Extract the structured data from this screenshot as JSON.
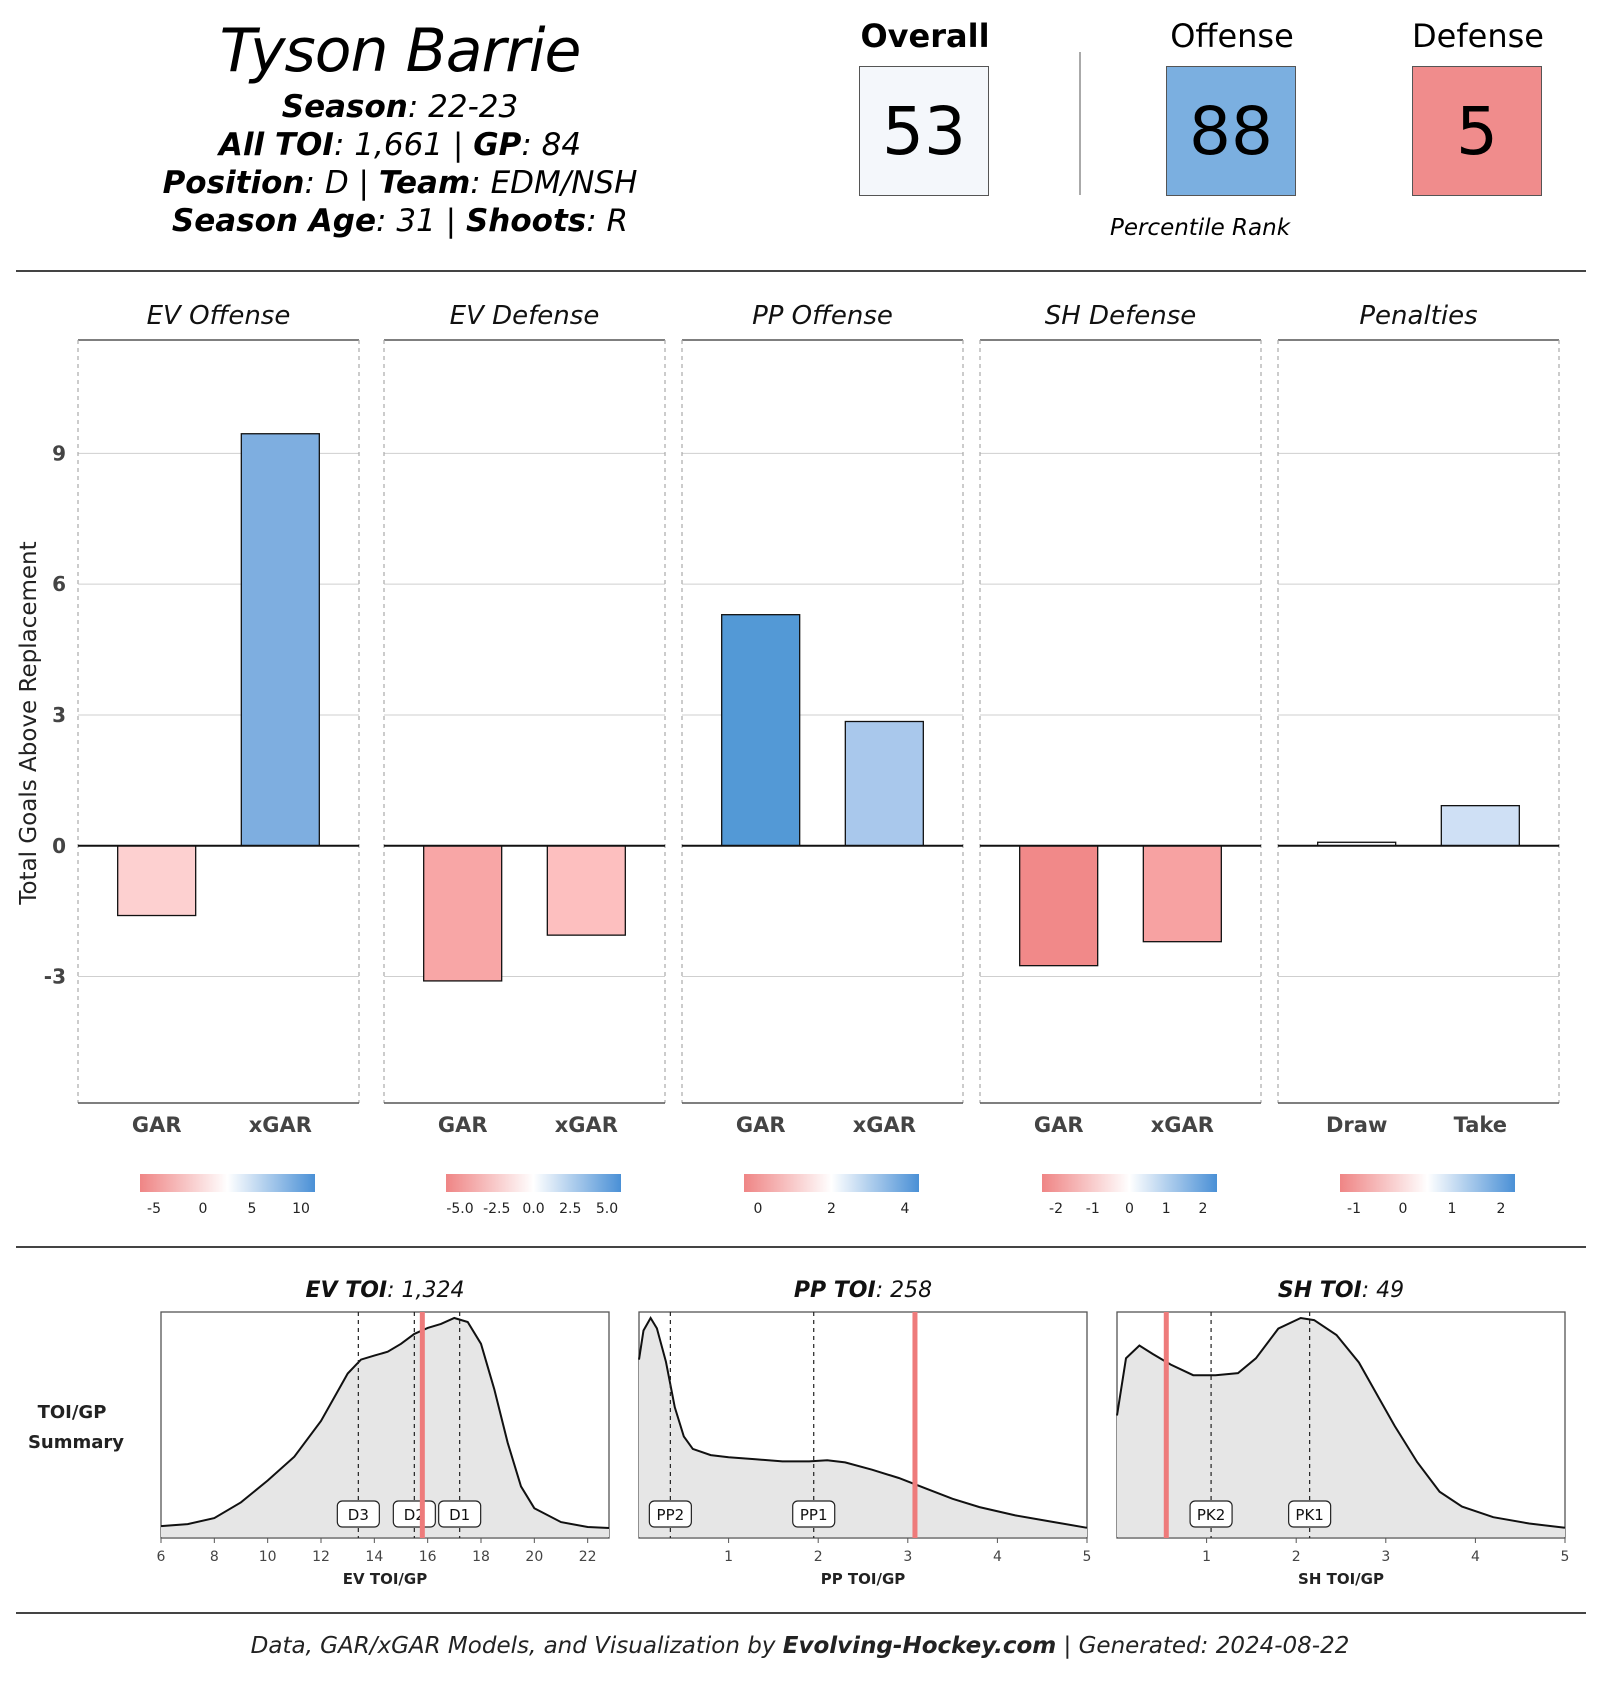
{
  "player": {
    "name": "Tyson Barrie",
    "season_label": "Season",
    "season": "22-23",
    "toi_label": "All TOI",
    "toi": "1,661",
    "gp_label": "GP",
    "gp": "84",
    "position_label": "Position",
    "position": "D",
    "team_label": "Team",
    "team": "EDM/NSH",
    "age_label": "Season Age",
    "age": "31",
    "shoots_label": "Shoots",
    "shoots": "R",
    "sep": "|"
  },
  "ranks": {
    "overall_label": "Overall",
    "overall": "53",
    "offense_label": "Offense",
    "offense": "88",
    "defense_label": "Defense",
    "defense": "5",
    "caption": "Percentile Rank",
    "colors": {
      "overall": "#f4f7fb",
      "offense": "#7bafe0",
      "defense": "#f08c8c"
    }
  },
  "chart_data": [
    {
      "type": "bar",
      "title": "Total Goals Above Replacement by component",
      "ylabel": "Total Goals Above Replacement",
      "ylim": [
        -5.9,
        11.6
      ],
      "yticks": [
        -3,
        0,
        3,
        6,
        9
      ],
      "panels": [
        {
          "title": "EV Offense",
          "categories": [
            "GAR",
            "xGAR"
          ],
          "values": [
            -1.6,
            9.45
          ],
          "colors": [
            "#fdd0d0",
            "#7eaee0"
          ],
          "legend_ticks": [
            "-5",
            "0",
            "5",
            "10"
          ]
        },
        {
          "title": "EV Defense",
          "categories": [
            "GAR",
            "xGAR"
          ],
          "values": [
            -3.1,
            -2.05
          ],
          "colors": [
            "#f8a6a6",
            "#fdbfbf"
          ],
          "legend_ticks": [
            "-5.0",
            "-2.5",
            "0.0",
            "2.5",
            "5.0"
          ]
        },
        {
          "title": "PP Offense",
          "categories": [
            "GAR",
            "xGAR"
          ],
          "values": [
            5.3,
            2.85
          ],
          "colors": [
            "#5399d6",
            "#a9c8ec"
          ],
          "legend_ticks": [
            "0",
            "2",
            "4"
          ]
        },
        {
          "title": "SH Defense",
          "categories": [
            "GAR",
            "xGAR"
          ],
          "values": [
            -2.75,
            -2.2
          ],
          "colors": [
            "#f18989",
            "#f7a2a2"
          ],
          "legend_ticks": [
            "-2",
            "-1",
            "0",
            "1",
            "2"
          ]
        },
        {
          "title": "Penalties",
          "categories": [
            "Draw",
            "Take"
          ],
          "values": [
            0.08,
            0.92
          ],
          "colors": [
            "#fafbfd",
            "#cfe0f5"
          ],
          "legend_ticks": [
            "-1",
            "0",
            "1",
            "2"
          ]
        }
      ]
    },
    {
      "type": "area",
      "title": "TOI/GP Summary",
      "row_label": [
        "TOI/GP",
        "Summary"
      ],
      "panels": [
        {
          "title_label": "EV TOI",
          "title_value": "1,324",
          "xlabel": "EV TOI/GP",
          "xlim": [
            6,
            22.8
          ],
          "xticks": [
            6,
            8,
            10,
            12,
            14,
            16,
            18,
            20,
            22
          ],
          "player_value": 15.8,
          "markers": [
            {
              "label": "D3",
              "x": 13.4
            },
            {
              "label": "D2",
              "x": 15.5
            },
            {
              "label": "D1",
              "x": 17.2
            }
          ],
          "density": [
            [
              6,
              0.03
            ],
            [
              7,
              0.04
            ],
            [
              8,
              0.07
            ],
            [
              9,
              0.15
            ],
            [
              10,
              0.26
            ],
            [
              11,
              0.38
            ],
            [
              12,
              0.56
            ],
            [
              13,
              0.8
            ],
            [
              13.5,
              0.87
            ],
            [
              14,
              0.89
            ],
            [
              14.5,
              0.91
            ],
            [
              15,
              0.95
            ],
            [
              15.5,
              1.0
            ],
            [
              16,
              1.03
            ],
            [
              16.5,
              1.05
            ],
            [
              17,
              1.08
            ],
            [
              17.5,
              1.06
            ],
            [
              18,
              0.95
            ],
            [
              18.5,
              0.72
            ],
            [
              19,
              0.45
            ],
            [
              19.5,
              0.23
            ],
            [
              20,
              0.12
            ],
            [
              21,
              0.05
            ],
            [
              22,
              0.025
            ],
            [
              22.8,
              0.02
            ]
          ]
        },
        {
          "title_label": "PP TOI",
          "title_value": "258",
          "xlabel": "PP TOI/GP",
          "xlim": [
            0,
            5
          ],
          "xticks": [
            1,
            2,
            3,
            4,
            5
          ],
          "player_value": 3.08,
          "markers": [
            {
              "label": "PP2",
              "x": 0.35
            },
            {
              "label": "PP1",
              "x": 1.95
            }
          ],
          "density": [
            [
              0,
              0.83
            ],
            [
              0.05,
              0.97
            ],
            [
              0.13,
              1.03
            ],
            [
              0.2,
              0.98
            ],
            [
              0.3,
              0.82
            ],
            [
              0.4,
              0.6
            ],
            [
              0.5,
              0.46
            ],
            [
              0.6,
              0.4
            ],
            [
              0.8,
              0.37
            ],
            [
              1.0,
              0.36
            ],
            [
              1.3,
              0.35
            ],
            [
              1.6,
              0.34
            ],
            [
              1.9,
              0.34
            ],
            [
              2.1,
              0.345
            ],
            [
              2.3,
              0.335
            ],
            [
              2.6,
              0.3
            ],
            [
              2.9,
              0.26
            ],
            [
              3.2,
              0.21
            ],
            [
              3.5,
              0.16
            ],
            [
              3.8,
              0.12
            ],
            [
              4.2,
              0.08
            ],
            [
              4.6,
              0.05
            ],
            [
              5.0,
              0.02
            ]
          ]
        },
        {
          "title_label": "SH TOI",
          "title_value": "49",
          "xlabel": "SH TOI/GP",
          "xlim": [
            0,
            5
          ],
          "xticks": [
            1,
            2,
            3,
            4,
            5
          ],
          "player_value": 0.55,
          "markers": [
            {
              "label": "PK2",
              "x": 1.05
            },
            {
              "label": "PK1",
              "x": 2.15
            }
          ],
          "density": [
            [
              0,
              0.55
            ],
            [
              0.1,
              0.82
            ],
            [
              0.25,
              0.88
            ],
            [
              0.4,
              0.84
            ],
            [
              0.6,
              0.79
            ],
            [
              0.85,
              0.74
            ],
            [
              1.1,
              0.74
            ],
            [
              1.35,
              0.75
            ],
            [
              1.55,
              0.82
            ],
            [
              1.8,
              0.96
            ],
            [
              2.05,
              1.01
            ],
            [
              2.2,
              1.0
            ],
            [
              2.45,
              0.93
            ],
            [
              2.7,
              0.8
            ],
            [
              2.9,
              0.65
            ],
            [
              3.1,
              0.5
            ],
            [
              3.35,
              0.33
            ],
            [
              3.6,
              0.19
            ],
            [
              3.85,
              0.12
            ],
            [
              4.2,
              0.07
            ],
            [
              4.6,
              0.04
            ],
            [
              5.0,
              0.02
            ]
          ]
        }
      ]
    }
  ],
  "footer": {
    "text_before": "Data, GAR/xGAR Models, and Visualization by",
    "site": "Evolving-Hockey.com",
    "sep": "|",
    "generated": "Generated: 2024-08-22"
  }
}
